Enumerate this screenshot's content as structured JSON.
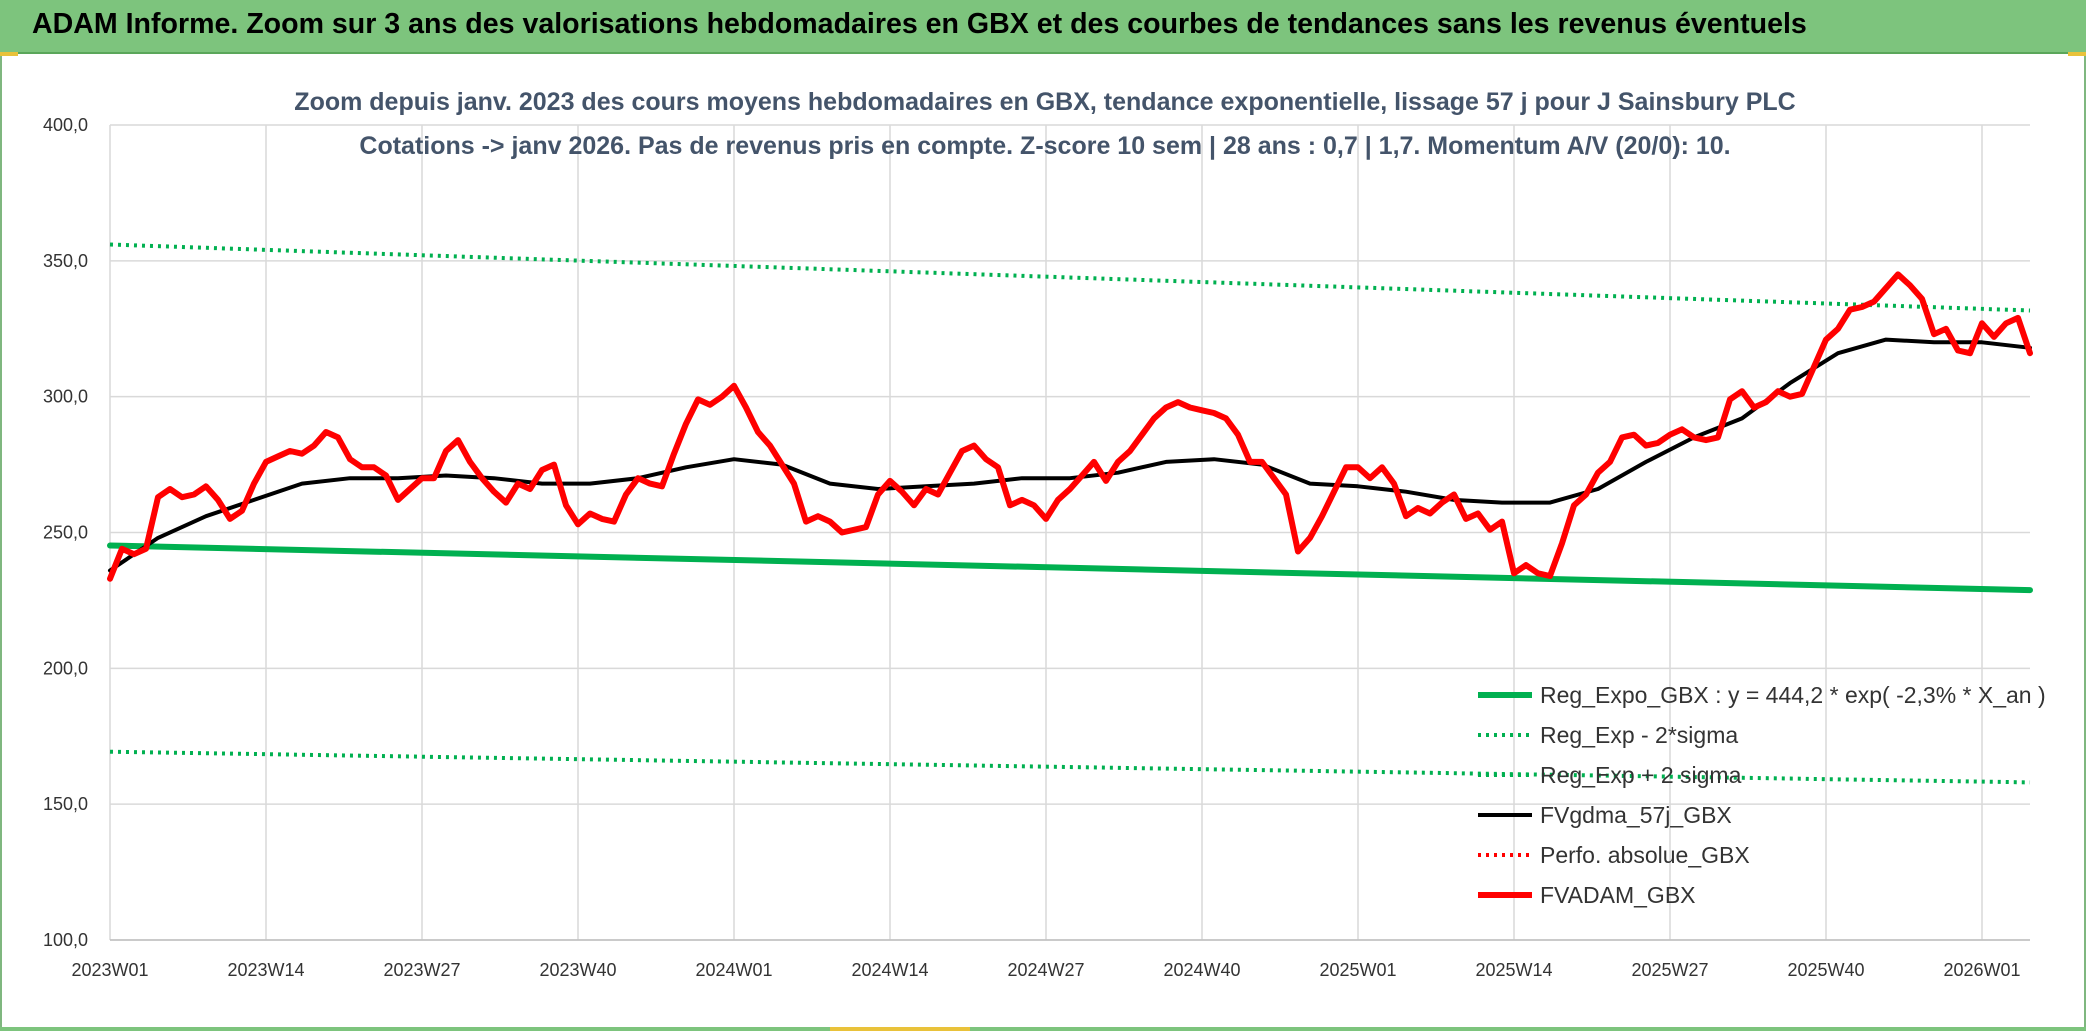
{
  "banner": {
    "title": "ADAM Informe. Zoom sur 3 ans des valorisations hebdomadaires en GBX et des courbes de tendances sans les revenus éventuels"
  },
  "chart_data": {
    "type": "line",
    "title": "Zoom depuis janv. 2023 des cours moyens hebdomadaires en GBX, tendance exponentielle, lissage 57 j pour J Sainsbury PLC",
    "subtitle": "Cotations -> janv 2026. Pas de revenus pris en compte. Z-score 10 sem | 28 ans : 0,7 | 1,7. Momentum A/V (20/0): 10.",
    "ylim": [
      100,
      400
    ],
    "y_ticks": [
      "100,0",
      "150,0",
      "200,0",
      "250,0",
      "300,0",
      "350,0",
      "400,0"
    ],
    "x_ticks": [
      "2023W01",
      "2023W14",
      "2023W27",
      "2023W40",
      "2024W01",
      "2024W14",
      "2024W27",
      "2024W40",
      "2025W01",
      "2025W14",
      "2025W27",
      "2025W40",
      "2026W01"
    ],
    "x_range_weeks": [
      0,
      160
    ],
    "grid": true,
    "legend_position": "bottom-right",
    "series": [
      {
        "name": "Reg_Expo_GBX : y = 444,2 * exp( -2,3% *  X_an )",
        "color": "#00b050",
        "style": "solid-thick",
        "x": [
          0,
          160
        ],
        "values": [
          245.2,
          228.8
        ]
      },
      {
        "name": "Reg_Exp - 2*sigma",
        "color": "#00b050",
        "style": "dotted",
        "x": [
          0,
          160
        ],
        "values": [
          169.3,
          158.0
        ]
      },
      {
        "name": "Reg_Exp + 2 sigma",
        "color": "#00b050",
        "style": "dotted",
        "x": [
          0,
          160
        ],
        "values": [
          356.0,
          331.7
        ]
      },
      {
        "name": "FVgdma_57j_GBX",
        "color": "#000000",
        "style": "solid",
        "x": [
          0,
          4,
          8,
          12,
          16,
          20,
          24,
          28,
          32,
          36,
          40,
          44,
          48,
          52,
          56,
          60,
          64,
          68,
          72,
          76,
          80,
          84,
          88,
          92,
          96,
          100,
          104,
          108,
          112,
          116,
          120,
          124,
          128,
          132,
          136,
          140,
          144,
          148,
          152,
          156,
          160
        ],
        "values": [
          236,
          248,
          256,
          262,
          268,
          270,
          270,
          271,
          270,
          268,
          268,
          270,
          274,
          277,
          275,
          268,
          266,
          267,
          268,
          270,
          270,
          272,
          276,
          277,
          275,
          268,
          267,
          265,
          262,
          261,
          261,
          266,
          276,
          285,
          292,
          305,
          316,
          321,
          320,
          320,
          318
        ]
      },
      {
        "name": "Perfo. absolue_GBX",
        "color": "#ff0000",
        "style": "dotted",
        "x": [],
        "values": []
      },
      {
        "name": "FVADAM_GBX",
        "color": "#ff0000",
        "style": "solid-thick",
        "x": [
          0,
          1,
          2,
          3,
          4,
          5,
          6,
          7,
          8,
          9,
          10,
          11,
          12,
          13,
          14,
          15,
          16,
          17,
          18,
          19,
          20,
          21,
          22,
          23,
          24,
          25,
          26,
          27,
          28,
          29,
          30,
          31,
          32,
          33,
          34,
          35,
          36,
          37,
          38,
          39,
          40,
          41,
          42,
          43,
          44,
          45,
          46,
          47,
          48,
          49,
          50,
          51,
          52,
          53,
          54,
          55,
          56,
          57,
          58,
          59,
          60,
          61,
          62,
          63,
          64,
          65,
          66,
          67,
          68,
          69,
          70,
          71,
          72,
          73,
          74,
          75,
          76,
          77,
          78,
          79,
          80,
          81,
          82,
          83,
          84,
          85,
          86,
          87,
          88,
          89,
          90,
          91,
          92,
          93,
          94,
          95,
          96,
          97,
          98,
          99,
          100,
          101,
          102,
          103,
          104,
          105,
          106,
          107,
          108,
          109,
          110,
          111,
          112,
          113,
          114,
          115,
          116,
          117,
          118,
          119,
          120,
          121,
          122,
          123,
          124,
          125,
          126,
          127,
          128,
          129,
          130,
          131,
          132,
          133,
          134,
          135,
          136,
          137,
          138,
          139,
          140,
          141,
          142,
          143,
          144,
          145,
          146,
          147,
          148,
          149,
          150,
          151,
          152,
          153,
          154,
          155,
          156,
          157,
          158,
          159,
          160
        ],
        "values": [
          233,
          244,
          242,
          244,
          263,
          266,
          263,
          264,
          267,
          262,
          255,
          258,
          268,
          276,
          278,
          280,
          279,
          282,
          287,
          285,
          277,
          274,
          274,
          271,
          262,
          266,
          270,
          270,
          280,
          284,
          276,
          270,
          265,
          261,
          268,
          266,
          273,
          275,
          260,
          253,
          257,
          255,
          254,
          264,
          270,
          268,
          267,
          279,
          290,
          299,
          297,
          300,
          304,
          296,
          287,
          282,
          275,
          268,
          254,
          256,
          254,
          250,
          251,
          252,
          264,
          269,
          265,
          260,
          266,
          264,
          272,
          280,
          282,
          277,
          274,
          260,
          262,
          260,
          255,
          262,
          266,
          271,
          276,
          269,
          276,
          280,
          286,
          292,
          296,
          298,
          296,
          295,
          294,
          292,
          286,
          276,
          276,
          270,
          264,
          243,
          248,
          256,
          265,
          274,
          274,
          270,
          274,
          268,
          256,
          259,
          257,
          261,
          264,
          255,
          257,
          251,
          254,
          235,
          238,
          235,
          234,
          246,
          260,
          264,
          272,
          276,
          285,
          286,
          282,
          283,
          286,
          288,
          285,
          284,
          285,
          299,
          302,
          296,
          298,
          302,
          300,
          301,
          311,
          321,
          325,
          332,
          333,
          335,
          340,
          345,
          341,
          336,
          323,
          325,
          317,
          316,
          327,
          322,
          327,
          329,
          316
        ]
      }
    ]
  }
}
